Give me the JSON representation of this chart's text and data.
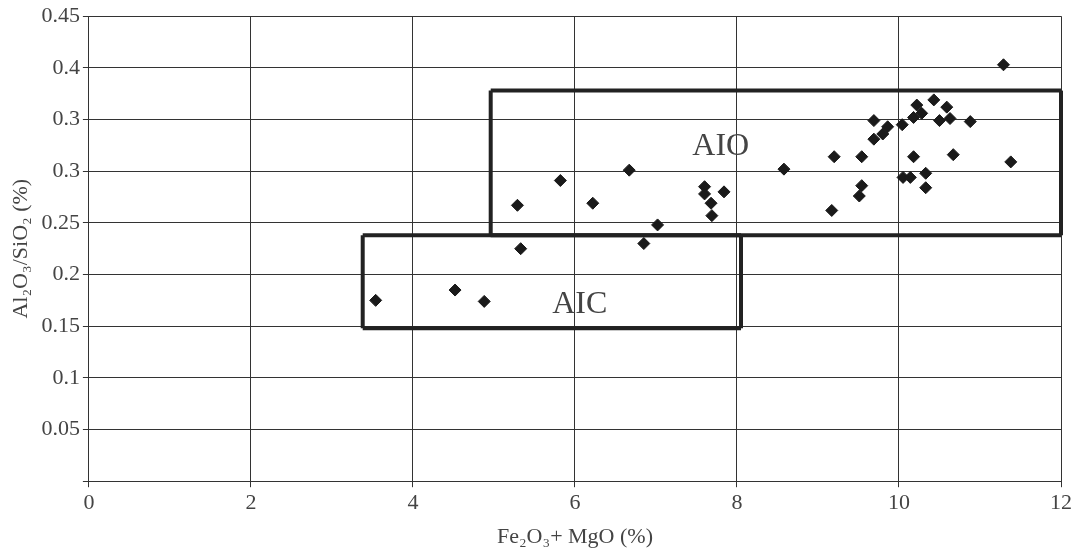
{
  "chart_data": {
    "type": "scatter",
    "xlabel": "Fe₂O₃+ MgO (%)",
    "ylabel": "Al₂O₃/SiO₂ (%)",
    "xlim": [
      0,
      12
    ],
    "xticks": [
      0,
      2,
      4,
      6,
      8,
      10,
      12
    ],
    "ylim": [
      0,
      0.45
    ],
    "yticks": [
      {
        "value": 0,
        "label": null
      },
      0.05,
      0.1,
      0.15,
      0.2,
      0.25,
      0.3,
      {
        "value": 0.35,
        "label": "0.3"
      },
      0.4,
      0.45
    ],
    "grid": true,
    "legend": false,
    "marker": "diamond",
    "series": [
      {
        "type": "scatter",
        "color": "#1a1a1a",
        "x": [
          3.54,
          4.52,
          4.88,
          5.29,
          5.33,
          5.82,
          6.22,
          6.67,
          6.85,
          7.02,
          7.6,
          7.6,
          7.68,
          7.69,
          7.84,
          8.58,
          9.2,
          9.17,
          9.51,
          9.54,
          9.54,
          9.69,
          9.69,
          9.8,
          9.86,
          10.04,
          10.05,
          10.14,
          10.18,
          10.18,
          10.22,
          10.28,
          10.33,
          10.33,
          10.43,
          10.5,
          10.59,
          10.63,
          10.67,
          10.88,
          11.29,
          11.38
        ],
        "values": [
          0.175,
          0.185,
          0.174,
          0.267,
          0.225,
          0.291,
          0.269,
          0.301,
          0.23,
          0.248,
          0.285,
          0.278,
          0.269,
          0.257,
          0.28,
          0.302,
          0.314,
          0.262,
          0.276,
          0.286,
          0.314,
          0.331,
          0.349,
          0.336,
          0.343,
          0.345,
          0.294,
          0.294,
          0.314,
          0.352,
          0.364,
          0.356,
          0.298,
          0.284,
          0.369,
          0.349,
          0.362,
          0.351,
          0.316,
          0.348,
          0.403,
          0.309
        ]
      },
      {
        "type": "line",
        "color": "#222222",
        "marker": "none",
        "x": [
          4.96,
          12
        ],
        "values": [
          0.238,
          0.238
        ]
      },
      {
        "type": "line",
        "color": "#222222",
        "marker": "none",
        "x": [
          4.96,
          12
        ],
        "values": [
          0.378,
          0.378
        ]
      },
      {
        "type": "line",
        "color": "#222222",
        "marker": "none",
        "x": [
          4.96,
          4.96
        ],
        "values": [
          0.238,
          0.378
        ]
      },
      {
        "type": "line",
        "color": "#222222",
        "marker": "none",
        "x": [
          12,
          12
        ],
        "values": [
          0.238,
          0.378
        ]
      },
      {
        "type": "line",
        "color": "#222222",
        "marker": "none",
        "x": [
          3.38,
          8.05
        ],
        "values": [
          0.148,
          0.148
        ]
      },
      {
        "type": "line",
        "color": "#222222",
        "marker": "none",
        "x": [
          3.38,
          8.05
        ],
        "values": [
          0.238,
          0.238
        ]
      },
      {
        "type": "line",
        "color": "#222222",
        "marker": "none",
        "x": [
          3.38,
          3.38
        ],
        "values": [
          0.148,
          0.238
        ]
      },
      {
        "type": "line",
        "color": "#222222",
        "marker": "none",
        "x": [
          8.05,
          8.05
        ],
        "values": [
          0.148,
          0.238
        ]
      }
    ],
    "annotations": [
      "AIO",
      "AIC"
    ]
  }
}
